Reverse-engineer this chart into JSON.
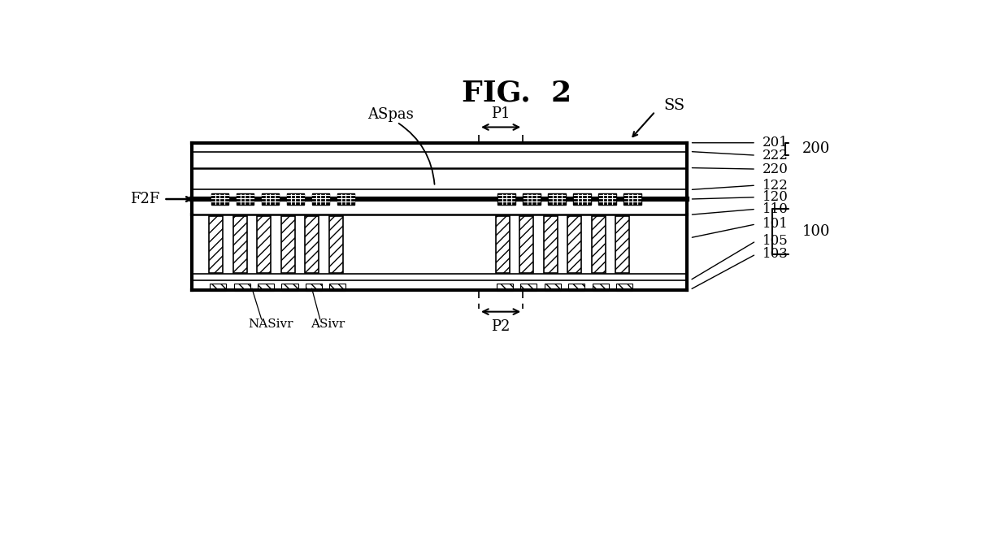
{
  "title": "FIG.  2",
  "bg_color": "#ffffff",
  "fig_width": 12.4,
  "fig_height": 6.56,
  "labels": {
    "title": "FIG.  2",
    "F2F": "F2F",
    "SS": "SS",
    "ASpas": "ASpas",
    "P1": "P1",
    "P2": "P2",
    "NASivr": "NASivr",
    "ASivr": "ASivr"
  },
  "refs": {
    "201": "201",
    "222": "222",
    "220": "220",
    "122": "122",
    "120": "120",
    "110": "110",
    "101": "101",
    "105": "105",
    "103": "103",
    "200": "200",
    "100": "100"
  }
}
